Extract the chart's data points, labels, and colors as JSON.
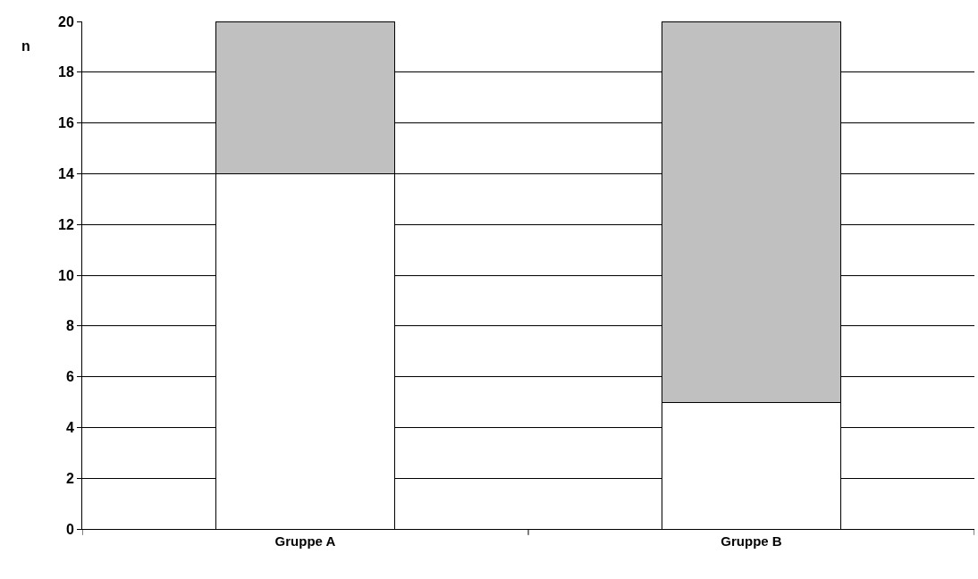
{
  "chart_data": {
    "type": "bar",
    "stacked": true,
    "ylabel": "n",
    "categories": [
      "Gruppe A",
      "Gruppe B"
    ],
    "series": [
      {
        "color": "#ffffff",
        "values": [
          14,
          5
        ]
      },
      {
        "color": "#c0c0c0",
        "values": [
          6,
          15
        ]
      }
    ],
    "ylim": [
      0,
      20
    ],
    "yticks": [
      0,
      2,
      4,
      6,
      8,
      10,
      12,
      14,
      16,
      18,
      20
    ],
    "grid": "y"
  }
}
